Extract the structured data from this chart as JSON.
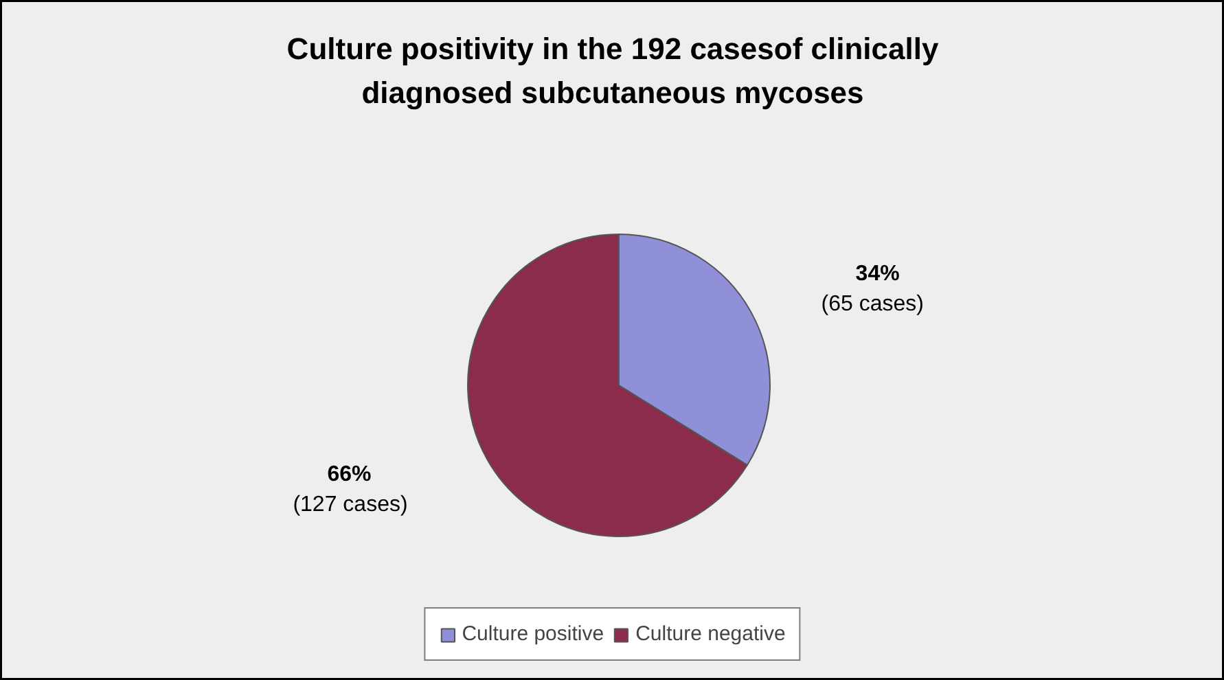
{
  "chart_data": {
    "type": "pie",
    "title": "Culture positivity in the 192 casesof clinically diagnosed subcutaneous mycoses",
    "categories": [
      "Culture positive",
      "Culture negative"
    ],
    "values": [
      65,
      127
    ],
    "value_labels": [
      "34%\n(65 cases)",
      "66%\n(127 cases)"
    ],
    "colors": [
      "#9090d8",
      "#8c2c4c"
    ],
    "legend": "bottom"
  }
}
